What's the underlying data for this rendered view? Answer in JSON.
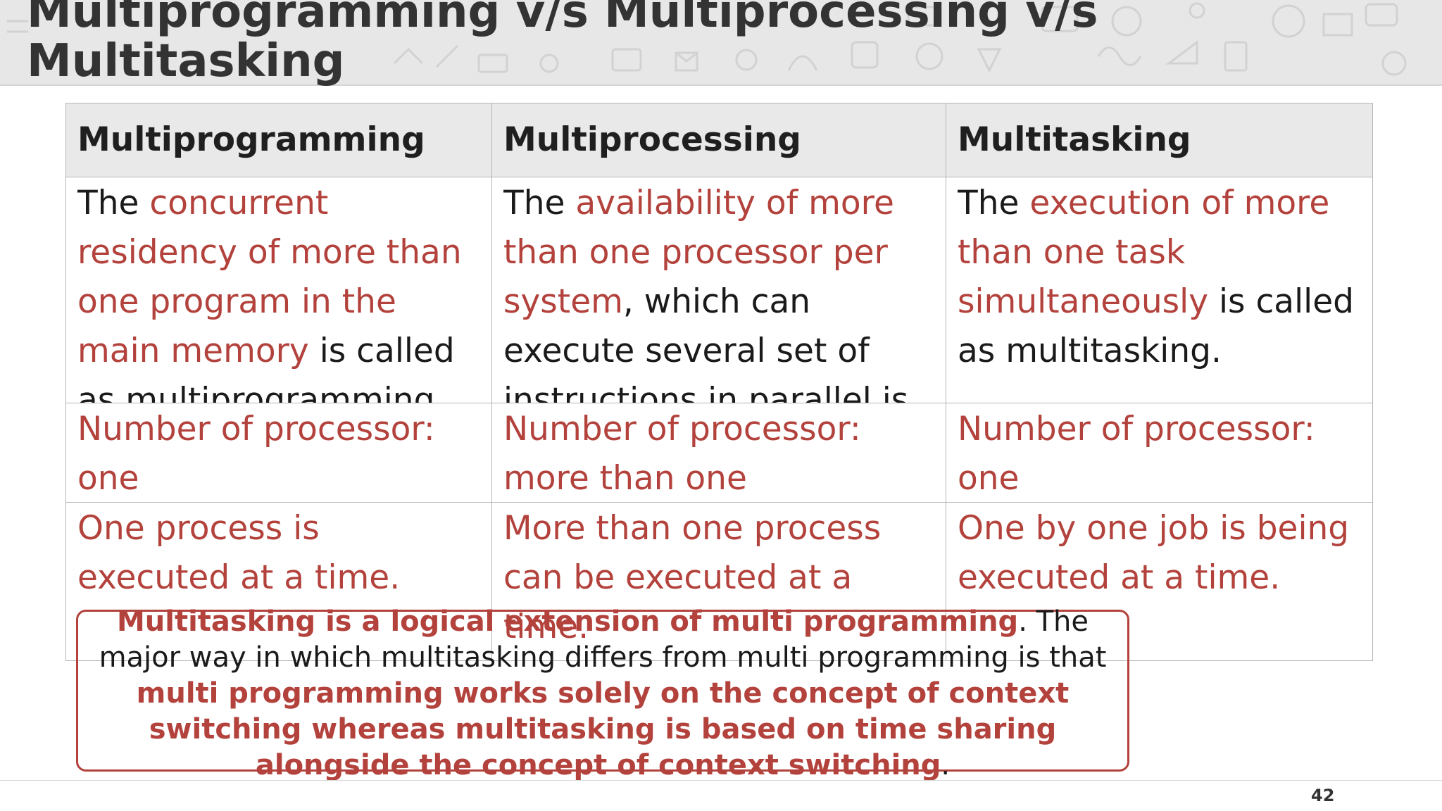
{
  "slide": {
    "title": "Multiprogramming v/s Multiprocessing v/s Multitasking",
    "page_number": "42"
  },
  "colors": {
    "accent": "#b3423c",
    "header_band": "#e7e7e7",
    "table_header": "#e9e9e9"
  },
  "table": {
    "headers": [
      "Multiprogramming",
      "Multiprocessing",
      "Multitasking"
    ],
    "rows": [
      [
        {
          "pre": "The ",
          "hl": "concurrent residency of more than one program in the main memory",
          "post": " is called as multiprogramming."
        },
        {
          "pre": "The ",
          "hl": "availability of more than one processor per system",
          "post": ", which can execute several set of instructions in parallel is called as multiprocessing."
        },
        {
          "pre": "The ",
          "hl": "execution of more than one task simultaneously",
          "post": " is called as multitasking."
        }
      ],
      [
        {
          "pre": "",
          "hl": "Number of processor: one",
          "post": ""
        },
        {
          "pre": "",
          "hl": "Number of processor: more than one",
          "post": ""
        },
        {
          "pre": "",
          "hl": "Number of processor: one",
          "post": ""
        }
      ],
      [
        {
          "pre": "",
          "hl": "One process is executed at a time.",
          "post": ""
        },
        {
          "pre": "",
          "hl": "More than one process can be executed at a time.",
          "post": ""
        },
        {
          "pre": "",
          "hl": "One by one job is being executed at a time.",
          "post": ""
        }
      ]
    ]
  },
  "note": {
    "hl1": "Multitasking is a logical extension of multi programming",
    "text1": ". The major way in which multitasking differs from multi programming is that ",
    "hl2": "multi programming works solely on the concept of context switching whereas multitasking is based on time sharing alongside the concept of context switching",
    "text2": "."
  }
}
